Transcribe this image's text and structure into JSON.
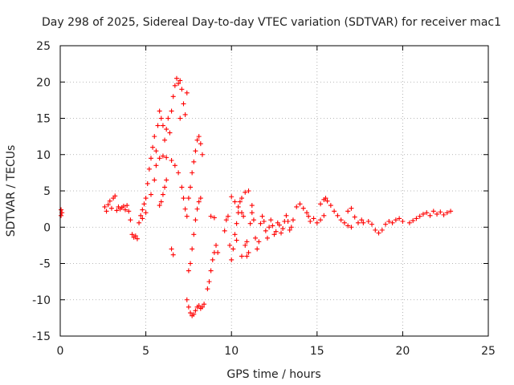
{
  "chart_data": {
    "type": "scatter",
    "title": "Day 298 of 2025, Sidereal Day-to-day VTEC variation (SDTVAR) for receiver mac1",
    "xlabel": "GPS time / hours",
    "ylabel": "SDTVAR / TECUs",
    "xlim": [
      0,
      25
    ],
    "ylim": [
      -15,
      25
    ],
    "xticks": [
      "0",
      "5",
      "10",
      "15",
      "20",
      "25"
    ],
    "yticks": [
      "25",
      "20",
      "15",
      "10",
      "5",
      "0",
      "-5",
      "-10",
      "-15"
    ],
    "grid": true,
    "marker": "plus",
    "color": "#ff0000",
    "series": [
      {
        "name": "SDTVAR",
        "points": [
          [
            0.05,
            2.4
          ],
          [
            0.05,
            1.6
          ],
          [
            0.1,
            2.0
          ],
          [
            2.6,
            2.8
          ],
          [
            2.7,
            2.2
          ],
          [
            2.8,
            3.1
          ],
          [
            2.9,
            3.6
          ],
          [
            3.0,
            2.6
          ],
          [
            3.1,
            4.0
          ],
          [
            3.2,
            4.3
          ],
          [
            3.3,
            2.3
          ],
          [
            3.4,
            2.8
          ],
          [
            3.5,
            2.5
          ],
          [
            3.6,
            2.7
          ],
          [
            3.7,
            2.9
          ],
          [
            3.8,
            2.4
          ],
          [
            3.9,
            3.0
          ],
          [
            4.0,
            2.2
          ],
          [
            4.1,
            1.0
          ],
          [
            4.2,
            -1.0
          ],
          [
            4.3,
            -1.4
          ],
          [
            4.4,
            -1.2
          ],
          [
            4.5,
            -1.6
          ],
          [
            4.6,
            0.6
          ],
          [
            4.7,
            1.6
          ],
          [
            4.8,
            2.4
          ],
          [
            4.9,
            3.2
          ],
          [
            5.0,
            4.0
          ],
          [
            5.1,
            6.0
          ],
          [
            5.2,
            8.0
          ],
          [
            5.3,
            9.5
          ],
          [
            5.4,
            11.0
          ],
          [
            5.5,
            12.5
          ],
          [
            5.6,
            10.5
          ],
          [
            5.7,
            14.0
          ],
          [
            5.8,
            16.0
          ],
          [
            5.9,
            15.0
          ],
          [
            6.0,
            14.0
          ],
          [
            6.1,
            12.0
          ],
          [
            6.2,
            13.5
          ],
          [
            6.3,
            15.0
          ],
          [
            6.4,
            13.0
          ],
          [
            6.5,
            16.0
          ],
          [
            6.6,
            18.0
          ],
          [
            6.7,
            19.5
          ],
          [
            6.8,
            20.5
          ],
          [
            6.9,
            19.8
          ],
          [
            7.0,
            20.2
          ],
          [
            7.1,
            19.0
          ],
          [
            7.2,
            17.0
          ],
          [
            7.3,
            15.5
          ],
          [
            7.4,
            18.5
          ],
          [
            4.8,
            1.2
          ],
          [
            5.0,
            2.0
          ],
          [
            5.3,
            4.5
          ],
          [
            5.5,
            6.5
          ],
          [
            5.6,
            8.5
          ],
          [
            5.8,
            9.5
          ],
          [
            6.0,
            9.8
          ],
          [
            6.2,
            9.6
          ],
          [
            6.5,
            9.2
          ],
          [
            6.7,
            8.5
          ],
          [
            6.9,
            7.5
          ],
          [
            7.1,
            5.5
          ],
          [
            7.2,
            4.0
          ],
          [
            7.3,
            2.5
          ],
          [
            7.4,
            1.5
          ],
          [
            5.8,
            3.0
          ],
          [
            5.9,
            3.5
          ],
          [
            6.0,
            4.5
          ],
          [
            6.1,
            5.5
          ],
          [
            6.2,
            6.5
          ],
          [
            7.5,
            4.0
          ],
          [
            7.6,
            5.5
          ],
          [
            7.7,
            7.5
          ],
          [
            7.8,
            9.0
          ],
          [
            7.9,
            10.5
          ],
          [
            8.0,
            12.0
          ],
          [
            8.1,
            12.5
          ],
          [
            8.2,
            11.5
          ],
          [
            8.3,
            10.0
          ],
          [
            7.5,
            -6.0
          ],
          [
            7.6,
            -5.0
          ],
          [
            7.7,
            -3.0
          ],
          [
            7.8,
            -1.0
          ],
          [
            7.9,
            1.0
          ],
          [
            8.0,
            2.5
          ],
          [
            8.1,
            3.5
          ],
          [
            8.2,
            4.0
          ],
          [
            6.5,
            -3.0
          ],
          [
            6.6,
            -3.8
          ],
          [
            7.0,
            15.0
          ],
          [
            8.8,
            1.5
          ],
          [
            9.0,
            1.3
          ],
          [
            7.4,
            -10.0
          ],
          [
            7.5,
            -11.0
          ],
          [
            7.6,
            -11.8
          ],
          [
            7.7,
            -12.2
          ],
          [
            7.8,
            -12.0
          ],
          [
            7.9,
            -11.5
          ],
          [
            8.0,
            -11.0
          ],
          [
            8.1,
            -10.8
          ],
          [
            8.2,
            -11.2
          ],
          [
            8.3,
            -11.0
          ],
          [
            8.4,
            -10.6
          ],
          [
            8.6,
            -8.5
          ],
          [
            8.7,
            -7.5
          ],
          [
            8.8,
            -6.0
          ],
          [
            8.9,
            -4.5
          ],
          [
            9.0,
            -3.5
          ],
          [
            9.1,
            -2.5
          ],
          [
            9.2,
            -3.5
          ],
          [
            9.6,
            -0.5
          ],
          [
            9.7,
            1.0
          ],
          [
            9.8,
            1.5
          ],
          [
            9.9,
            -2.5
          ],
          [
            10.0,
            -4.5
          ],
          [
            10.1,
            -3.0
          ],
          [
            10.2,
            -1.0
          ],
          [
            10.3,
            0.5
          ],
          [
            10.4,
            2.0
          ],
          [
            10.5,
            3.5
          ],
          [
            10.6,
            4.0
          ],
          [
            10.7,
            1.5
          ],
          [
            10.8,
            -2.5
          ],
          [
            10.9,
            -4.0
          ],
          [
            11.0,
            -3.5
          ],
          [
            11.1,
            0.5
          ],
          [
            11.2,
            2.0
          ],
          [
            11.3,
            1.0
          ],
          [
            11.4,
            -1.5
          ],
          [
            11.5,
            -3.0
          ],
          [
            11.6,
            -2.0
          ],
          [
            11.7,
            0.5
          ],
          [
            11.8,
            1.5
          ],
          [
            11.9,
            0.8
          ],
          [
            12.0,
            -0.5
          ],
          [
            12.1,
            -1.5
          ],
          [
            12.2,
            0.0
          ],
          [
            12.3,
            1.0
          ],
          [
            12.4,
            0.2
          ],
          [
            12.5,
            -1.0
          ],
          [
            12.6,
            -0.6
          ],
          [
            12.7,
            0.6
          ],
          [
            12.8,
            0.3
          ],
          [
            12.9,
            -0.8
          ],
          [
            13.0,
            -0.2
          ],
          [
            13.1,
            0.8
          ],
          [
            13.2,
            1.6
          ],
          [
            13.3,
            0.8
          ],
          [
            13.4,
            -0.4
          ],
          [
            13.5,
            0.0
          ],
          [
            13.6,
            1.0
          ],
          [
            10.0,
            4.2
          ],
          [
            10.2,
            3.5
          ],
          [
            10.4,
            2.8
          ],
          [
            10.6,
            2.0
          ],
          [
            10.8,
            4.8
          ],
          [
            11.0,
            5.0
          ],
          [
            11.2,
            3.0
          ],
          [
            10.3,
            -1.8
          ],
          [
            10.6,
            -4.0
          ],
          [
            10.9,
            -2.0
          ],
          [
            13.8,
            2.8
          ],
          [
            14.0,
            3.2
          ],
          [
            14.2,
            2.6
          ],
          [
            14.4,
            2.0
          ],
          [
            14.5,
            1.5
          ],
          [
            14.6,
            0.8
          ],
          [
            14.8,
            1.2
          ],
          [
            15.0,
            0.6
          ],
          [
            15.2,
            1.0
          ],
          [
            15.4,
            1.6
          ],
          [
            15.2,
            3.2
          ],
          [
            15.4,
            3.8
          ],
          [
            15.5,
            4.0
          ],
          [
            15.6,
            3.6
          ],
          [
            15.8,
            3.0
          ],
          [
            16.0,
            2.2
          ],
          [
            16.2,
            1.6
          ],
          [
            16.4,
            1.0
          ],
          [
            16.6,
            0.6
          ],
          [
            16.8,
            0.2
          ],
          [
            17.0,
            0.0
          ],
          [
            16.8,
            2.2
          ],
          [
            17.0,
            2.6
          ],
          [
            17.2,
            1.4
          ],
          [
            17.4,
            0.6
          ],
          [
            17.6,
            1.0
          ],
          [
            17.7,
            0.6
          ],
          [
            18.0,
            0.8
          ],
          [
            18.2,
            0.4
          ],
          [
            18.4,
            -0.4
          ],
          [
            18.6,
            -0.8
          ],
          [
            18.8,
            -0.4
          ],
          [
            19.0,
            0.4
          ],
          [
            19.2,
            0.8
          ],
          [
            19.4,
            0.6
          ],
          [
            19.6,
            1.0
          ],
          [
            19.8,
            1.2
          ],
          [
            20.0,
            0.8
          ],
          [
            20.4,
            0.6
          ],
          [
            20.6,
            0.9
          ],
          [
            20.8,
            1.2
          ],
          [
            21.0,
            1.5
          ],
          [
            21.2,
            1.8
          ],
          [
            21.4,
            2.0
          ],
          [
            21.6,
            1.6
          ],
          [
            21.8,
            2.2
          ],
          [
            22.0,
            1.8
          ],
          [
            22.2,
            2.1
          ],
          [
            22.4,
            1.7
          ],
          [
            22.6,
            2.0
          ],
          [
            22.8,
            2.2
          ]
        ]
      }
    ]
  }
}
